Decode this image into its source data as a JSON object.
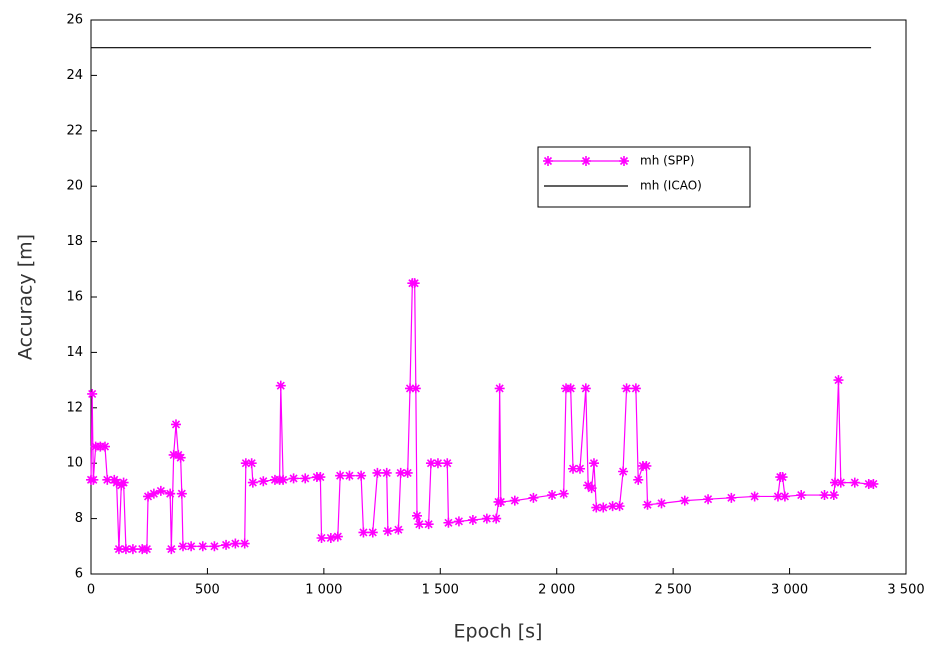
{
  "chart_data": {
    "type": "line",
    "xlabel": "Epoch [s]",
    "ylabel": "Accuracy [m]",
    "xlim": [
      0,
      3500
    ],
    "ylim": [
      6,
      26
    ],
    "xticks": [
      0,
      500,
      {
        "value": 1000,
        "label": "1 000"
      },
      {
        "value": 1500,
        "label": "1 500"
      },
      {
        "value": 2000,
        "label": "2 000"
      },
      {
        "value": 2500,
        "label": "2 500"
      },
      {
        "value": 3000,
        "label": "3 000"
      },
      {
        "value": 3500,
        "label": "3 500"
      }
    ],
    "yticks": [
      6,
      8,
      10,
      12,
      14,
      16,
      18,
      20,
      22,
      24,
      26
    ],
    "grid": false,
    "series": [
      {
        "name": "mh (SPP)",
        "color": "#ff00ff",
        "marker": "asterisk",
        "x": [
          0,
          5,
          10,
          20,
          40,
          60,
          70,
          100,
          110,
          120,
          130,
          140,
          150,
          180,
          220,
          240,
          245,
          270,
          300,
          340,
          345,
          355,
          365,
          375,
          385,
          390,
          395,
          430,
          480,
          530,
          580,
          620,
          660,
          665,
          690,
          695,
          740,
          790,
          810,
          815,
          825,
          870,
          920,
          970,
          985,
          990,
          1030,
          1060,
          1070,
          1110,
          1160,
          1170,
          1210,
          1230,
          1270,
          1275,
          1320,
          1330,
          1360,
          1370,
          1380,
          1390,
          1395,
          1400,
          1410,
          1450,
          1460,
          1490,
          1530,
          1535,
          1580,
          1640,
          1700,
          1740,
          1750,
          1755,
          1760,
          1820,
          1900,
          1980,
          2030,
          2040,
          2060,
          2070,
          2100,
          2125,
          2135,
          2150,
          2160,
          2170,
          2200,
          2240,
          2270,
          2285,
          2300,
          2340,
          2350,
          2370,
          2385,
          2390,
          2450,
          2550,
          2650,
          2750,
          2850,
          2950,
          2960,
          2970,
          2980,
          3050,
          3150,
          3190,
          3195,
          3210,
          3220,
          3280,
          3340,
          3360
        ],
        "values": [
          9.4,
          12.5,
          9.4,
          10.6,
          10.6,
          10.6,
          9.4,
          9.4,
          9.3,
          6.9,
          9.2,
          9.3,
          6.9,
          6.9,
          6.9,
          6.9,
          8.8,
          8.9,
          9.0,
          8.9,
          6.9,
          10.3,
          11.4,
          10.3,
          10.2,
          8.9,
          7.0,
          7.0,
          7.0,
          7.0,
          7.05,
          7.1,
          7.1,
          10.0,
          10.0,
          9.3,
          9.35,
          9.4,
          9.4,
          12.8,
          9.4,
          9.45,
          9.45,
          9.5,
          9.5,
          7.3,
          7.3,
          7.35,
          9.55,
          9.55,
          9.55,
          7.5,
          7.5,
          9.65,
          9.65,
          7.55,
          7.6,
          9.65,
          9.65,
          12.7,
          16.5,
          16.5,
          12.7,
          8.1,
          7.8,
          7.8,
          10.0,
          10.0,
          10.0,
          7.85,
          7.9,
          7.95,
          8.0,
          8.0,
          8.6,
          12.7,
          8.6,
          8.65,
          8.75,
          8.85,
          8.9,
          12.7,
          12.7,
          9.8,
          9.8,
          12.7,
          9.2,
          9.1,
          10.0,
          8.4,
          8.4,
          8.45,
          8.45,
          9.7,
          12.7,
          12.7,
          9.4,
          9.9,
          9.9,
          8.5,
          8.55,
          8.65,
          8.7,
          8.75,
          8.8,
          8.8,
          9.5,
          9.5,
          8.8,
          8.85,
          8.85,
          8.85,
          9.3,
          13.0,
          9.3,
          9.3,
          9.25,
          9.25
        ]
      },
      {
        "name": "mh (ICAO)",
        "color": "#000000",
        "marker": "none",
        "x": [
          0,
          3350
        ],
        "values": [
          25,
          25
        ]
      }
    ]
  }
}
